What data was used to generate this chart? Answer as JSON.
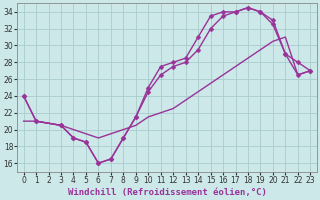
{
  "background_color": "#cce8e8",
  "grid_color": "#aacccc",
  "line_color": "#993399",
  "marker_style": "D",
  "marker_size": 2.5,
  "line_width": 1.0,
  "xlabel": "Windchill (Refroidissement éolien,°C)",
  "xlabel_fontsize": 6.5,
  "tick_fontsize": 5.5,
  "xlim": [
    -0.5,
    23.5
  ],
  "ylim": [
    15.0,
    35.0
  ],
  "yticks": [
    16,
    18,
    20,
    22,
    24,
    26,
    28,
    30,
    32,
    34
  ],
  "xticks": [
    0,
    1,
    2,
    3,
    4,
    5,
    6,
    7,
    8,
    9,
    10,
    11,
    12,
    13,
    14,
    15,
    16,
    17,
    18,
    19,
    20,
    21,
    22,
    23
  ],
  "curve1_x": [
    0,
    1,
    3,
    4,
    5,
    6,
    7,
    8,
    9,
    10,
    11,
    12,
    13,
    14,
    15,
    16,
    17,
    18,
    19,
    20,
    21,
    22,
    23
  ],
  "curve1_y": [
    24,
    21,
    20.5,
    19,
    18.5,
    16,
    16.5,
    19,
    21.5,
    25,
    27.5,
    28,
    28.5,
    31,
    33.5,
    34,
    34,
    34.5,
    34,
    33,
    29,
    28,
    27
  ],
  "curve2_x": [
    0,
    1,
    3,
    4,
    5,
    6,
    7,
    8,
    9,
    10,
    11,
    12,
    13,
    14,
    15,
    16,
    17,
    18,
    19,
    20,
    21,
    22,
    23
  ],
  "curve2_y": [
    24,
    21,
    20.5,
    19,
    18.5,
    16,
    16.5,
    19,
    21.5,
    24.5,
    26.5,
    27.5,
    28,
    29.5,
    32,
    33.5,
    34,
    34.5,
    34,
    32.5,
    29,
    26.5,
    27
  ],
  "curve3_x": [
    0,
    1,
    3,
    4,
    5,
    6,
    7,
    8,
    9,
    10,
    11,
    12,
    13,
    14,
    15,
    16,
    17,
    18,
    19,
    20,
    21,
    22,
    23
  ],
  "curve3_y": [
    21,
    21,
    20.5,
    20,
    19.5,
    19,
    19.5,
    20,
    20.5,
    21.5,
    22,
    22.5,
    23.5,
    24.5,
    25.5,
    26.5,
    27.5,
    28.5,
    29.5,
    30.5,
    31,
    26.5,
    27
  ]
}
